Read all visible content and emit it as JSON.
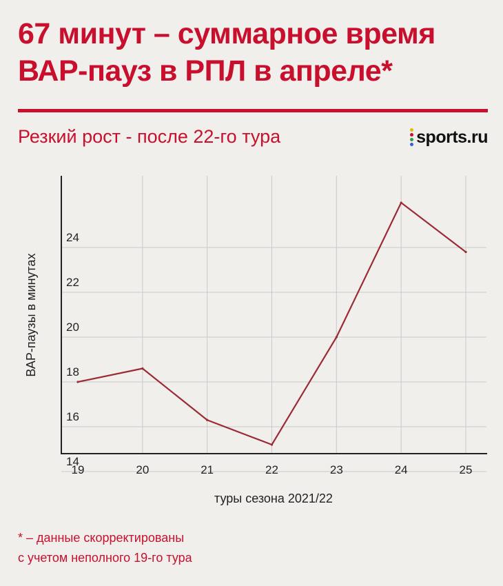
{
  "header": {
    "title_line1": "67 минут – суммарное время",
    "title_line2": "ВАР-пауз в РПЛ в апреле*",
    "subtitle": "Резкий рост - после 22-го тура",
    "logo_text": "sports.ru",
    "logo_dot_colors": [
      "#e6b800",
      "#c8102e",
      "#2e9e3e",
      "#3b5bdb"
    ]
  },
  "colors": {
    "accent": "#c8102e",
    "line": "#9b2a35",
    "grid": "#c9c9c9",
    "axis": "#222222"
  },
  "chart_data": {
    "type": "line",
    "x": [
      19,
      20,
      21,
      22,
      23,
      24,
      25
    ],
    "categories": [
      "19",
      "20",
      "21",
      "22",
      "23",
      "24",
      "25"
    ],
    "series": [
      {
        "values": [
          17.0,
          17.6,
          15.3,
          14.2,
          19.0,
          25.0,
          22.8
        ]
      }
    ],
    "yticks": [
      14,
      16,
      18,
      20,
      22,
      24
    ],
    "xlabel": "туры сезона 2021/22",
    "ylabel": "ВАР-паузы в минутах",
    "xlim": [
      19,
      25
    ],
    "ylim": [
      13.8,
      26.2
    ],
    "grid": true
  },
  "footnote": {
    "line1": "* – данные скорректированы",
    "line2": "с учетом неполного 19-го тура"
  }
}
